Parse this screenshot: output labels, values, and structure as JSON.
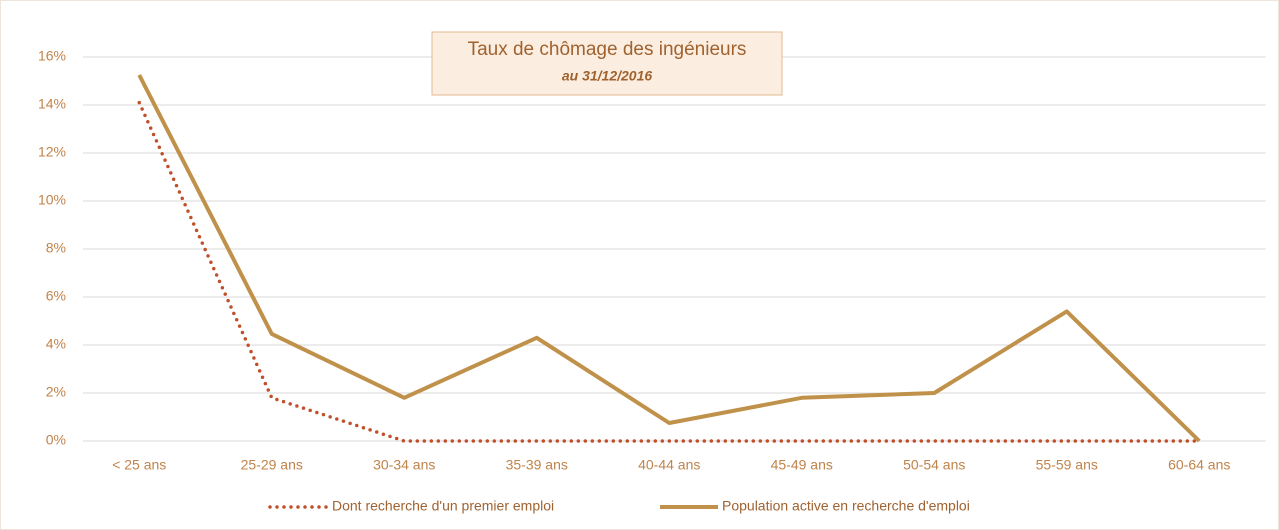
{
  "chart_data": {
    "type": "line",
    "title": "Taux de chômage des ingénieurs",
    "subtitle": "au 31/12/2016",
    "categories": [
      "< 25 ans",
      "25-29 ans",
      "30-34 ans",
      "35-39 ans",
      "40-44 ans",
      "45-49 ans",
      "50-54 ans",
      "55-59 ans",
      "60-64 ans"
    ],
    "series": [
      {
        "name": "Dont recherche d'un premier emploi",
        "color": "#c0502a",
        "dash": "dotted",
        "values": [
          14.1,
          1.8,
          0,
          0,
          0,
          0,
          0,
          0,
          0
        ]
      },
      {
        "name": "Population active en recherche d'emploi",
        "color": "#c0914a",
        "dash": "solid",
        "values": [
          15.25,
          4.46,
          1.8,
          4.3,
          0.75,
          1.8,
          2.0,
          5.4,
          0
        ]
      }
    ],
    "ylim": [
      0,
      16
    ],
    "yticks": [
      {
        "value": 0,
        "label": "0%"
      },
      {
        "value": 2,
        "label": "2%"
      },
      {
        "value": 4,
        "label": "4%"
      },
      {
        "value": 6,
        "label": "6%"
      },
      {
        "value": 8,
        "label": "8%"
      },
      {
        "value": 10,
        "label": "10%"
      },
      {
        "value": 12,
        "label": "12%"
      },
      {
        "value": 14,
        "label": "14%"
      },
      {
        "value": 16,
        "label": "16%"
      }
    ],
    "grid": true,
    "legend": "bottom"
  }
}
